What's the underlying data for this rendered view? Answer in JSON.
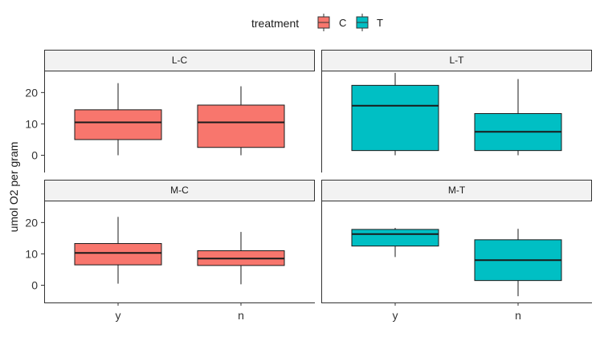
{
  "chart_data": {
    "type": "boxplot",
    "ylabel": "umol O2 per gram",
    "xlabel": "",
    "ylim": [
      -5.5,
      27
    ],
    "yticks": [
      0,
      10,
      20
    ],
    "categories": [
      "y",
      "n"
    ],
    "grid": false,
    "legend": {
      "title": "treatment",
      "position": "top",
      "entries": [
        {
          "name": "C",
          "color": "#F8766D"
        },
        {
          "name": "T",
          "color": "#00BFC4"
        }
      ]
    },
    "panels": [
      {
        "strip": "L-C",
        "treatment": "C",
        "boxes": [
          {
            "category": "y",
            "min": 0,
            "q1": 5,
            "median": 10.5,
            "q3": 14.5,
            "max": 23
          },
          {
            "category": "n",
            "min": 0,
            "q1": 2.5,
            "median": 10.5,
            "q3": 16,
            "max": 22
          }
        ]
      },
      {
        "strip": "L-T",
        "treatment": "T",
        "boxes": [
          {
            "category": "y",
            "min": 0,
            "q1": 1.5,
            "median": 15.8,
            "q3": 22.3,
            "max": 26.3
          },
          {
            "category": "n",
            "min": 0,
            "q1": 1.5,
            "median": 7.5,
            "q3": 13.3,
            "max": 24.3
          }
        ]
      },
      {
        "strip": "M-C",
        "treatment": "C",
        "boxes": [
          {
            "category": "y",
            "min": 0.5,
            "q1": 6.5,
            "median": 10.3,
            "q3": 13.3,
            "max": 21.8
          },
          {
            "category": "n",
            "min": 0.3,
            "q1": 6.3,
            "median": 8.5,
            "q3": 11,
            "max": 17
          }
        ]
      },
      {
        "strip": "M-T",
        "treatment": "T",
        "boxes": [
          {
            "category": "y",
            "min": 9,
            "q1": 12.5,
            "median": 16.3,
            "q3": 17.8,
            "max": 18.3
          },
          {
            "category": "n",
            "min": -3.5,
            "q1": 1.5,
            "median": 8,
            "q3": 14.5,
            "max": 18
          }
        ]
      }
    ]
  }
}
